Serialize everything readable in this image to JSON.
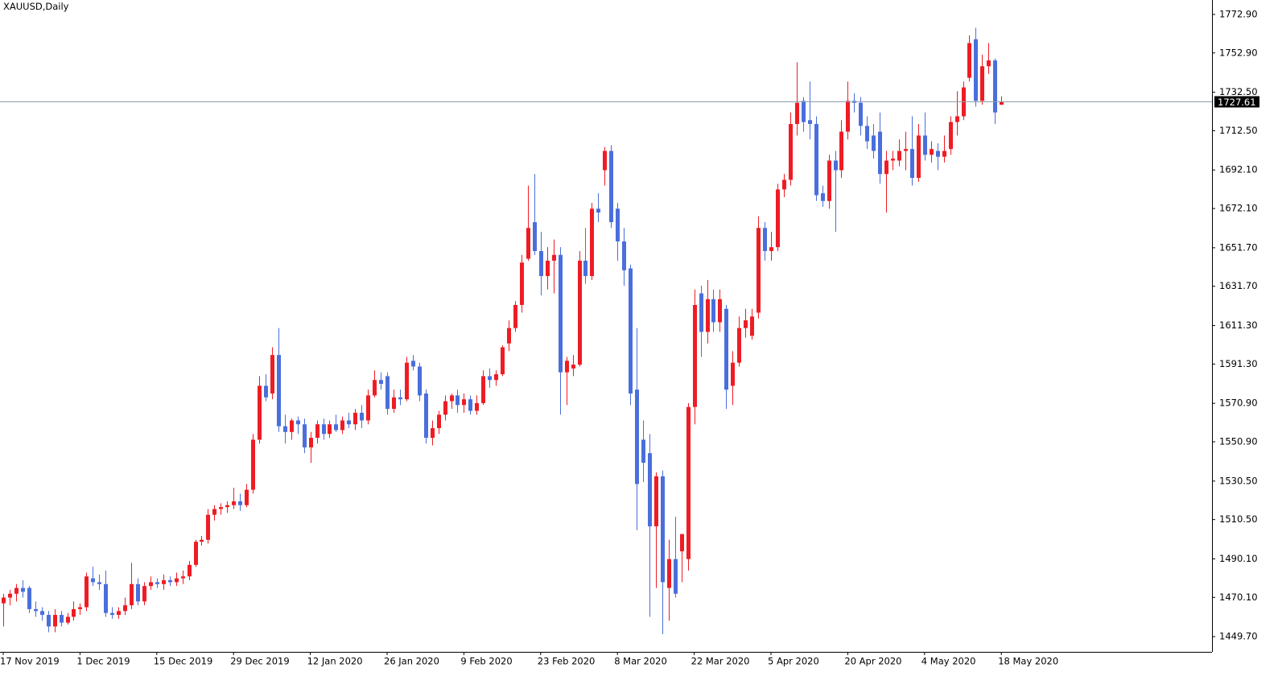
{
  "chart_data": {
    "type": "candlestick",
    "title": "XAUUSD,Daily",
    "up_color": "#ef1c24",
    "down_color": "#4a6fdc",
    "price_line_color": "#8f9ca8",
    "ylim": [
      1441.8,
      1780.4
    ],
    "yticks": [
      {
        "value": 1772.9,
        "label": "1772.90"
      },
      {
        "value": 1752.9,
        "label": "1752.90"
      },
      {
        "value": 1732.5,
        "label": "1732.50"
      },
      {
        "value": 1712.5,
        "label": "1712.50"
      },
      {
        "value": 1692.1,
        "label": "1692.10"
      },
      {
        "value": 1672.1,
        "label": "1672.10"
      },
      {
        "value": 1651.7,
        "label": "1651.70"
      },
      {
        "value": 1631.7,
        "label": "1631.70"
      },
      {
        "value": 1611.3,
        "label": "1611.30"
      },
      {
        "value": 1591.3,
        "label": "1591.30"
      },
      {
        "value": 1570.9,
        "label": "1570.90"
      },
      {
        "value": 1550.9,
        "label": "1550.90"
      },
      {
        "value": 1530.5,
        "label": "1530.50"
      },
      {
        "value": 1510.5,
        "label": "1510.50"
      },
      {
        "value": 1490.1,
        "label": "1490.10"
      },
      {
        "value": 1470.1,
        "label": "1470.10"
      },
      {
        "value": 1449.7,
        "label": "1449.70"
      }
    ],
    "categories": [
      "17 Nov 2019",
      null,
      null,
      null,
      null,
      null,
      null,
      null,
      null,
      null,
      null,
      null,
      "1 Dec 2019",
      null,
      null,
      null,
      null,
      null,
      null,
      null,
      null,
      null,
      null,
      null,
      "15 Dec 2019",
      null,
      null,
      null,
      null,
      null,
      null,
      null,
      null,
      null,
      null,
      null,
      "29 Dec 2019",
      null,
      null,
      null,
      null,
      null,
      null,
      null,
      null,
      null,
      null,
      null,
      "12 Jan 2020",
      null,
      null,
      null,
      null,
      null,
      null,
      null,
      null,
      null,
      null,
      null,
      "26 Jan 2020",
      null,
      null,
      null,
      null,
      null,
      null,
      null,
      null,
      null,
      null,
      null,
      "9 Feb 2020",
      null,
      null,
      null,
      null,
      null,
      null,
      null,
      null,
      null,
      null,
      null,
      "23 Feb 2020",
      null,
      null,
      null,
      null,
      null,
      null,
      null,
      null,
      null,
      null,
      null,
      "8 Mar 2020",
      null,
      null,
      null,
      null,
      null,
      null,
      null,
      null,
      null,
      null,
      null,
      "22 Mar 2020",
      null,
      null,
      null,
      null,
      null,
      null,
      null,
      null,
      null,
      null,
      null,
      "5 Apr 2020",
      null,
      null,
      null,
      null,
      null,
      null,
      null,
      null,
      null,
      null,
      null,
      "20 Apr 2020",
      null,
      null,
      null,
      null,
      null,
      null,
      null,
      null,
      null,
      null,
      null,
      "4 May 2020",
      null,
      null,
      null,
      null,
      null,
      null,
      null,
      null,
      null,
      null,
      null,
      "18 May 2020",
      null
    ],
    "ohlc": [
      [
        1467,
        1472,
        1455,
        1470
      ],
      [
        1470,
        1474,
        1466,
        1472
      ],
      [
        1472,
        1477,
        1468,
        1475
      ],
      [
        1475,
        1479,
        1470,
        1473
      ],
      [
        1475,
        1476,
        1462,
        1464
      ],
      [
        1464,
        1468,
        1460,
        1463
      ],
      [
        1463,
        1465,
        1458,
        1461
      ],
      [
        1461,
        1463,
        1452,
        1455
      ],
      [
        1455,
        1464,
        1452,
        1461
      ],
      [
        1461,
        1463,
        1455,
        1457
      ],
      [
        1457,
        1462,
        1456,
        1460
      ],
      [
        1460,
        1468,
        1458,
        1464
      ],
      [
        1464,
        1467,
        1461,
        1465
      ],
      [
        1465,
        1483,
        1463,
        1481
      ],
      [
        1480,
        1486,
        1476,
        1478
      ],
      [
        1478,
        1482,
        1474,
        1477
      ],
      [
        1477,
        1484,
        1460,
        1462
      ],
      [
        1462,
        1465,
        1459,
        1461
      ],
      [
        1461,
        1465,
        1459,
        1463
      ],
      [
        1463,
        1470,
        1461,
        1466
      ],
      [
        1466,
        1488,
        1464,
        1477
      ],
      [
        1477,
        1480,
        1466,
        1468
      ],
      [
        1468,
        1478,
        1466,
        1476
      ],
      [
        1476,
        1481,
        1474,
        1478
      ],
      [
        1478,
        1480,
        1475,
        1477
      ],
      [
        1477,
        1482,
        1474,
        1479
      ],
      [
        1479,
        1481,
        1476,
        1478
      ],
      [
        1478,
        1483,
        1476,
        1480
      ],
      [
        1480,
        1484,
        1477,
        1481
      ],
      [
        1481,
        1489,
        1479,
        1487
      ],
      [
        1487,
        1500,
        1486,
        1499
      ],
      [
        1499,
        1502,
        1497,
        1500
      ],
      [
        1500,
        1516,
        1498,
        1513
      ],
      [
        1513,
        1518,
        1510,
        1516
      ],
      [
        1516,
        1519,
        1513,
        1517
      ],
      [
        1517,
        1520,
        1514,
        1518
      ],
      [
        1518,
        1527,
        1516,
        1520
      ],
      [
        1520,
        1524,
        1515,
        1518
      ],
      [
        1518,
        1529,
        1517,
        1526
      ],
      [
        1526,
        1555,
        1524,
        1552
      ],
      [
        1552,
        1585,
        1550,
        1580
      ],
      [
        1580,
        1586,
        1572,
        1574
      ],
      [
        1576,
        1600,
        1573,
        1596
      ],
      [
        1596,
        1610,
        1556,
        1559
      ],
      [
        1559,
        1565,
        1550,
        1556
      ],
      [
        1556,
        1563,
        1552,
        1562
      ],
      [
        1562,
        1564,
        1555,
        1560
      ],
      [
        1560,
        1563,
        1545,
        1548
      ],
      [
        1548,
        1556,
        1540,
        1553
      ],
      [
        1553,
        1562,
        1550,
        1560
      ],
      [
        1560,
        1563,
        1552,
        1555
      ],
      [
        1555,
        1562,
        1553,
        1560
      ],
      [
        1560,
        1565,
        1556,
        1557
      ],
      [
        1557,
        1564,
        1555,
        1562
      ],
      [
        1562,
        1566,
        1558,
        1560
      ],
      [
        1560,
        1568,
        1557,
        1566
      ],
      [
        1566,
        1570,
        1558,
        1562
      ],
      [
        1562,
        1578,
        1560,
        1575
      ],
      [
        1575,
        1588,
        1574,
        1583
      ],
      [
        1583,
        1587,
        1578,
        1581
      ],
      [
        1585,
        1587,
        1565,
        1568
      ],
      [
        1568,
        1578,
        1566,
        1574
      ],
      [
        1574,
        1578,
        1570,
        1573
      ],
      [
        1573,
        1595,
        1572,
        1592
      ],
      [
        1593,
        1596,
        1588,
        1590
      ],
      [
        1590,
        1592,
        1572,
        1575
      ],
      [
        1576,
        1578,
        1550,
        1553
      ],
      [
        1553,
        1562,
        1549,
        1558
      ],
      [
        1558,
        1567,
        1555,
        1565
      ],
      [
        1565,
        1575,
        1562,
        1572
      ],
      [
        1572,
        1576,
        1568,
        1575
      ],
      [
        1575,
        1578,
        1566,
        1570
      ],
      [
        1570,
        1576,
        1566,
        1573
      ],
      [
        1573,
        1575,
        1565,
        1567
      ],
      [
        1567,
        1575,
        1565,
        1571
      ],
      [
        1571,
        1588,
        1570,
        1585
      ],
      [
        1585,
        1589,
        1579,
        1583
      ],
      [
        1583,
        1588,
        1580,
        1586
      ],
      [
        1586,
        1601,
        1585,
        1600
      ],
      [
        1602,
        1614,
        1598,
        1610
      ],
      [
        1610,
        1624,
        1608,
        1622
      ],
      [
        1622,
        1648,
        1618,
        1644
      ],
      [
        1646,
        1684,
        1645,
        1662
      ],
      [
        1665,
        1690,
        1648,
        1650
      ],
      [
        1650,
        1660,
        1627,
        1637
      ],
      [
        1637,
        1652,
        1630,
        1645
      ],
      [
        1645,
        1656,
        1628,
        1648
      ],
      [
        1648,
        1652,
        1565,
        1587
      ],
      [
        1587,
        1595,
        1570,
        1593
      ],
      [
        1589,
        1596,
        1585,
        1591
      ],
      [
        1591,
        1650,
        1590,
        1645
      ],
      [
        1645,
        1662,
        1633,
        1637
      ],
      [
        1637,
        1675,
        1635,
        1672
      ],
      [
        1672,
        1680,
        1665,
        1670
      ],
      [
        1692,
        1704,
        1684,
        1702
      ],
      [
        1702,
        1705,
        1662,
        1665
      ],
      [
        1672,
        1675,
        1645,
        1655
      ],
      [
        1655,
        1662,
        1632,
        1640
      ],
      [
        1641,
        1643,
        1570,
        1576
      ],
      [
        1578,
        1610,
        1505,
        1529
      ],
      [
        1552,
        1562,
        1530,
        1540
      ],
      [
        1545,
        1555,
        1460,
        1507
      ],
      [
        1507,
        1535,
        1475,
        1533
      ],
      [
        1533,
        1536,
        1451,
        1478
      ],
      [
        1475,
        1500,
        1458,
        1490
      ],
      [
        1490,
        1512,
        1470,
        1472
      ],
      [
        1494,
        1502,
        1478,
        1503
      ],
      [
        1490,
        1571,
        1484,
        1569
      ],
      [
        1569,
        1630,
        1560,
        1622
      ],
      [
        1628,
        1632,
        1595,
        1608
      ],
      [
        1608,
        1635,
        1602,
        1625
      ],
      [
        1625,
        1630,
        1608,
        1613
      ],
      [
        1613,
        1630,
        1608,
        1625
      ],
      [
        1620,
        1622,
        1568,
        1578
      ],
      [
        1580,
        1598,
        1570,
        1592
      ],
      [
        1592,
        1616,
        1590,
        1610
      ],
      [
        1610,
        1620,
        1605,
        1614
      ],
      [
        1606,
        1620,
        1604,
        1616
      ],
      [
        1618,
        1668,
        1615,
        1662
      ],
      [
        1662,
        1665,
        1645,
        1650
      ],
      [
        1650,
        1660,
        1645,
        1652
      ],
      [
        1652,
        1685,
        1650,
        1682
      ],
      [
        1682,
        1690,
        1678,
        1687
      ],
      [
        1687,
        1722,
        1684,
        1716
      ],
      [
        1716,
        1748,
        1710,
        1727
      ],
      [
        1728,
        1730,
        1712,
        1717
      ],
      [
        1718,
        1738,
        1708,
        1716
      ],
      [
        1716,
        1720,
        1676,
        1679
      ],
      [
        1680,
        1684,
        1673,
        1676
      ],
      [
        1676,
        1700,
        1672,
        1697
      ],
      [
        1697,
        1702,
        1660,
        1692
      ],
      [
        1692,
        1718,
        1688,
        1712
      ],
      [
        1712,
        1738,
        1708,
        1728
      ],
      [
        1728,
        1732,
        1722,
        1727
      ],
      [
        1727,
        1730,
        1710,
        1715
      ],
      [
        1715,
        1720,
        1703,
        1707
      ],
      [
        1710,
        1716,
        1698,
        1702
      ],
      [
        1712,
        1722,
        1685,
        1690
      ],
      [
        1690,
        1702,
        1670,
        1697
      ],
      [
        1697,
        1702,
        1692,
        1698
      ],
      [
        1697,
        1708,
        1694,
        1702
      ],
      [
        1702,
        1712,
        1692,
        1703
      ],
      [
        1703,
        1720,
        1684,
        1688
      ],
      [
        1688,
        1716,
        1686,
        1710
      ],
      [
        1710,
        1722,
        1697,
        1700
      ],
      [
        1700,
        1707,
        1696,
        1703
      ],
      [
        1702,
        1706,
        1692,
        1699
      ],
      [
        1699,
        1710,
        1696,
        1702
      ],
      [
        1703,
        1720,
        1700,
        1717
      ],
      [
        1717,
        1733,
        1710,
        1720
      ],
      [
        1720,
        1738,
        1718,
        1735
      ],
      [
        1740,
        1762,
        1738,
        1758
      ],
      [
        1760,
        1766,
        1725,
        1728
      ],
      [
        1728,
        1752,
        1726,
        1746
      ],
      [
        1746,
        1758,
        1742,
        1749
      ],
      [
        1749,
        1750,
        1716,
        1722
      ],
      [
        1725.98,
        1730.38,
        1725.98,
        1727.61
      ]
    ]
  }
}
